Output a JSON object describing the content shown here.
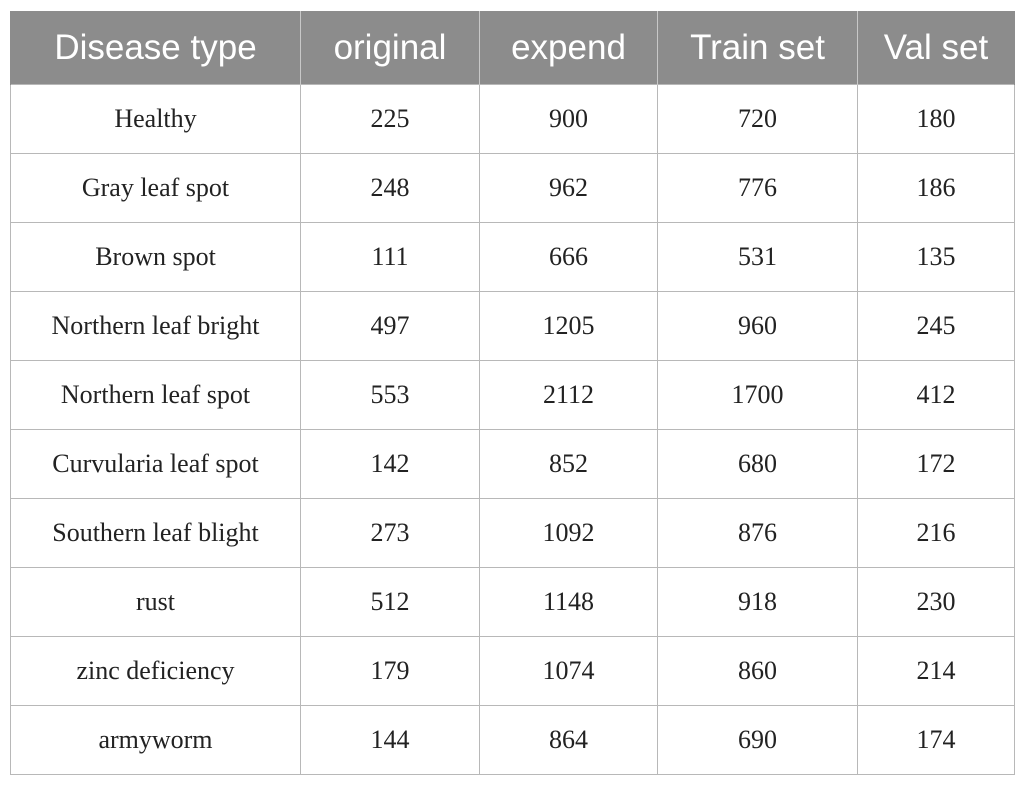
{
  "table": {
    "headers": [
      "Disease type",
      "original",
      "expend",
      "Train set",
      "Val set"
    ],
    "rows": [
      [
        "Healthy",
        "225",
        "900",
        "720",
        "180"
      ],
      [
        "Gray leaf spot",
        "248",
        "962",
        "776",
        "186"
      ],
      [
        "Brown spot",
        "111",
        "666",
        "531",
        "135"
      ],
      [
        "Northern leaf bright",
        "497",
        "1205",
        "960",
        "245"
      ],
      [
        "Northern leaf spot",
        "553",
        "2112",
        "1700",
        "412"
      ],
      [
        "Curvularia leaf spot",
        "142",
        "852",
        "680",
        "172"
      ],
      [
        "Southern leaf blight",
        "273",
        "1092",
        "876",
        "216"
      ],
      [
        "rust",
        "512",
        "1148",
        "918",
        "230"
      ],
      [
        "zinc deficiency",
        "179",
        "1074",
        "860",
        "214"
      ],
      [
        "armyworm",
        "144",
        "864",
        "690",
        "174"
      ]
    ]
  },
  "colors": {
    "header_background": "#8c8c8c",
    "header_text": "#ffffff",
    "border": "#b8b8b8"
  }
}
